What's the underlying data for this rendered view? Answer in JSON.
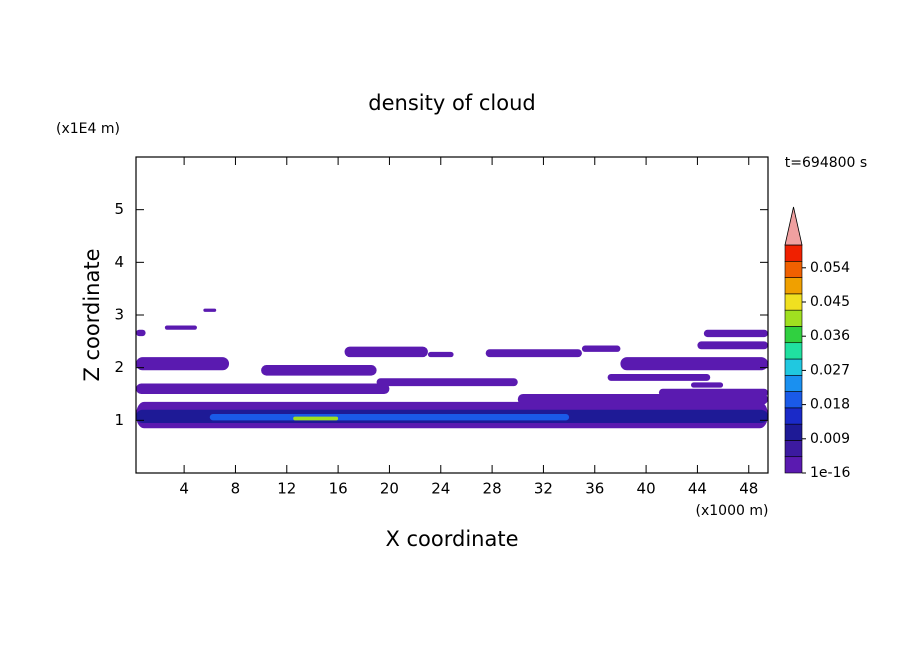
{
  "chart_data": {
    "type": "contour",
    "title": "density of cloud",
    "xlabel": "X coordinate",
    "ylabel": "Z coordinate",
    "xunit": "(x1000 m)",
    "yunit": "(x1E4 m)",
    "time_label": "t=694800 s",
    "xlim": [
      0.25,
      49.5
    ],
    "ylim": [
      0,
      6
    ],
    "xticks": [
      4,
      8,
      12,
      16,
      20,
      24,
      28,
      32,
      36,
      40,
      44,
      48
    ],
    "yticks": [
      1,
      2,
      3,
      4,
      5
    ],
    "patches": [
      {
        "x": [
          0.25,
          49.5
        ],
        "z": [
          0.85,
          1.35
        ],
        "value": 0.002
      },
      {
        "x": [
          30,
          49.5
        ],
        "z": [
          1.3,
          1.5
        ],
        "value": 0.002
      },
      {
        "x": [
          0.25,
          49.5
        ],
        "z": [
          0.95,
          1.2
        ],
        "value": 0.01
      },
      {
        "x": [
          6,
          34
        ],
        "z": [
          1.0,
          1.12
        ],
        "value": 0.02
      },
      {
        "x": [
          12.5,
          16
        ],
        "z": [
          1.0,
          1.07
        ],
        "value": 0.04
      },
      {
        "x": [
          0.25,
          20
        ],
        "z": [
          1.5,
          1.7
        ],
        "value": 0.002
      },
      {
        "x": [
          19,
          30
        ],
        "z": [
          1.65,
          1.8
        ],
        "value": 0.002
      },
      {
        "x": [
          41,
          49.5
        ],
        "z": [
          1.45,
          1.6
        ],
        "value": 0.002
      },
      {
        "x": [
          0.25,
          7.5
        ],
        "z": [
          1.95,
          2.2
        ],
        "value": 0.002
      },
      {
        "x": [
          10,
          19
        ],
        "z": [
          1.85,
          2.05
        ],
        "value": 0.002
      },
      {
        "x": [
          16.5,
          23
        ],
        "z": [
          2.2,
          2.4
        ],
        "value": 0.002
      },
      {
        "x": [
          23,
          25
        ],
        "z": [
          2.2,
          2.3
        ],
        "value": 0.002
      },
      {
        "x": [
          27.5,
          35
        ],
        "z": [
          2.2,
          2.35
        ],
        "value": 0.002
      },
      {
        "x": [
          35,
          38
        ],
        "z": [
          2.3,
          2.42
        ],
        "value": 0.002
      },
      {
        "x": [
          38,
          49.5
        ],
        "z": [
          1.95,
          2.2
        ],
        "value": 0.002
      },
      {
        "x": [
          37,
          45
        ],
        "z": [
          1.75,
          1.88
        ],
        "value": 0.002
      },
      {
        "x": [
          43.5,
          46
        ],
        "z": [
          1.62,
          1.72
        ],
        "value": 0.002
      },
      {
        "x": [
          44,
          49.5
        ],
        "z": [
          2.35,
          2.5
        ],
        "value": 0.002
      },
      {
        "x": [
          44.5,
          49.5
        ],
        "z": [
          2.58,
          2.72
        ],
        "value": 0.002
      },
      {
        "x": [
          0.25,
          1
        ],
        "z": [
          2.6,
          2.72
        ],
        "value": 0.002
      },
      {
        "x": [
          2.5,
          5
        ],
        "z": [
          2.72,
          2.8
        ],
        "value": 0.002
      },
      {
        "x": [
          5.5,
          6.5
        ],
        "z": [
          3.06,
          3.12
        ],
        "value": 0.002
      }
    ],
    "clim": [
      0,
      0.06
    ],
    "colors": [
      "#5a1ab0",
      "#3c1aa0",
      "#1e1a96",
      "#1a2ac8",
      "#1a5ae8",
      "#1a90f0",
      "#20c8e0",
      "#20e0a0",
      "#30d040",
      "#a0e020",
      "#f0e020",
      "#f0a000",
      "#f06000",
      "#f02000"
    ],
    "overflow_color": "#f0a0a0",
    "cticks": [
      {
        "value": 1e-16,
        "label": "1e-16"
      },
      0.009,
      0.018,
      0.027,
      0.036,
      0.045,
      0.054
    ]
  }
}
